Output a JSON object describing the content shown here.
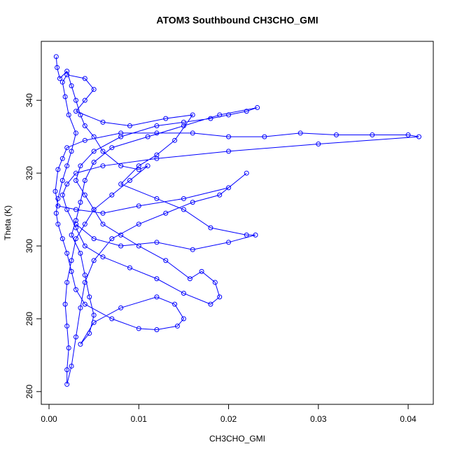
{
  "chart_data": {
    "type": "line",
    "title": "ATOM3 Southbound CH3CHO_GMI",
    "x_label": "CH3CHO_GMI",
    "y_label": "Theta (K)",
    "color": "#0000ff",
    "markers": true,
    "x": [
      0.0008,
      0.0009,
      0.0012,
      0.002,
      0.0025,
      0.003,
      0.0035,
      0.004,
      0.005,
      0.006,
      0.008,
      0.01,
      0.011,
      0.009,
      0.007,
      0.005,
      0.004,
      0.003,
      0.0025,
      0.002,
      0.0018,
      0.002,
      0.0022,
      0.002,
      0.002,
      0.0025,
      0.003,
      0.0035,
      0.004,
      0.005,
      0.007,
      0.01,
      0.013,
      0.016,
      0.019,
      0.022,
      0.02,
      0.015,
      0.01,
      0.006,
      0.003,
      0.001,
      0.0007,
      0.001,
      0.0015,
      0.002,
      0.004,
      0.008,
      0.012,
      0.016,
      0.02,
      0.024,
      0.028,
      0.032,
      0.036,
      0.04,
      0.0412,
      0.03,
      0.02,
      0.012,
      0.006,
      0.003,
      0.002,
      0.0015,
      0.002,
      0.003,
      0.004,
      0.006,
      0.009,
      0.012,
      0.015,
      0.018,
      0.019,
      0.0185,
      0.017,
      0.0157,
      0.013,
      0.01,
      0.008,
      0.006,
      0.005,
      0.004,
      0.003,
      0.0035,
      0.005,
      0.008,
      0.012,
      0.015,
      0.018,
      0.02,
      0.022,
      0.0232,
      0.019,
      0.015,
      0.011,
      0.007,
      0.005,
      0.004,
      0.0035,
      0.003,
      0.0025,
      0.0035,
      0.004,
      0.0045,
      0.005,
      0.0045,
      0.0035,
      0.005,
      0.008,
      0.012,
      0.014,
      0.015,
      0.0143,
      0.012,
      0.01,
      0.007,
      0.004,
      0.003,
      0.0025,
      0.002,
      0.0015,
      0.001,
      0.0008,
      0.001,
      0.0015,
      0.002,
      0.0025,
      0.003,
      0.0022,
      0.0018,
      0.0015,
      0.002,
      0.004,
      0.005,
      0.004,
      0.003,
      0.006,
      0.009,
      0.013,
      0.016,
      0.014,
      0.012,
      0.01,
      0.008,
      0.012,
      0.015,
      0.018,
      0.022,
      0.023,
      0.02,
      0.016,
      0.012,
      0.008,
      0.005,
      0.003
    ],
    "values": [
      352,
      349,
      346,
      348,
      344,
      340,
      336,
      333,
      330,
      326,
      322,
      321,
      322,
      318,
      314,
      310,
      306,
      302,
      296,
      290,
      284,
      278,
      272,
      266,
      262,
      267,
      275,
      283,
      290,
      296,
      302,
      306,
      309,
      312,
      314,
      320,
      316,
      313,
      311,
      309,
      310,
      311,
      315,
      321,
      324,
      327,
      329,
      331,
      331,
      331,
      330,
      330,
      331,
      330.5,
      330.5,
      330.5,
      330,
      328,
      326,
      324,
      322,
      320,
      317,
      314,
      310,
      305,
      300,
      297,
      294,
      291,
      287,
      284,
      286,
      290,
      293,
      291,
      296,
      300,
      303,
      306,
      310,
      314,
      318,
      322,
      326,
      330,
      333,
      334,
      335,
      336,
      337,
      338,
      336,
      333,
      330,
      327,
      323,
      318,
      312,
      307,
      303,
      298,
      292,
      286,
      281,
      276,
      273,
      279,
      283,
      286,
      284,
      280,
      278,
      277,
      277.3,
      280,
      284,
      288,
      293,
      298,
      302,
      306,
      309,
      313,
      318,
      322,
      326,
      331,
      336,
      341,
      345,
      347,
      346,
      343,
      340,
      337,
      334,
      333,
      335,
      336,
      329,
      325,
      322,
      317,
      313,
      310,
      305,
      303,
      303,
      301,
      299,
      301,
      300,
      302,
      306
    ],
    "xlim": [
      -0.00086,
      0.0428
    ],
    "ylim": [
      256.5,
      356.2
    ],
    "xticks": [
      {
        "value": 0,
        "label": "0.00"
      },
      0.01,
      0.02,
      0.03,
      0.04
    ],
    "yticks": [
      260,
      280,
      300,
      320,
      340
    ]
  }
}
